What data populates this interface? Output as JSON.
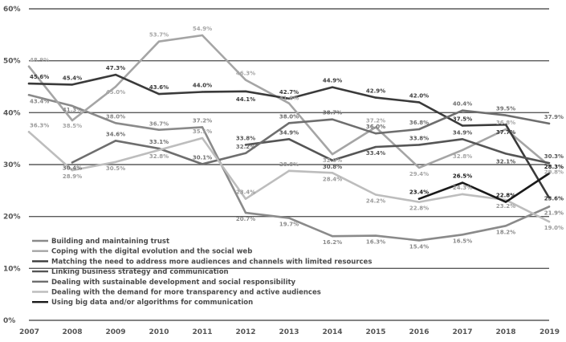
{
  "chart_data": {
    "type": "line",
    "categories": [
      "2007",
      "2008",
      "2009",
      "2010",
      "2011",
      "2012",
      "2013",
      "2014",
      "2015",
      "2016",
      "2017",
      "2018",
      "2019"
    ],
    "y_ticks": [
      "0%",
      "10%",
      "20%",
      "30%",
      "40%",
      "50%",
      "60%"
    ],
    "ylim": [
      0,
      60
    ],
    "grid": true,
    "legend_position": "bottom-left",
    "series": [
      {
        "name": "Building and maintaining trust",
        "color": "#8a8a8a",
        "values": [
          43.4,
          41.3,
          38.0,
          36.7,
          37.2,
          20.7,
          19.7,
          16.2,
          16.3,
          15.4,
          16.5,
          18.2,
          21.9
        ],
        "labels": [
          "43.4%",
          "41.3%",
          "38.0%",
          "36.7%",
          "37.2%",
          "20.7%",
          "19.7%",
          "16.2%",
          "16.3%",
          "15.4%",
          "16.5%",
          "18.2%",
          "21.9%"
        ]
      },
      {
        "name": "Coping with the digital evolution and the social web",
        "color": "#a5a5a5",
        "values": [
          48.9,
          38.5,
          45.0,
          53.7,
          54.9,
          46.3,
          41.8,
          32.0,
          37.2,
          29.4,
          32.8,
          36.8,
          29.8
        ],
        "labels": [
          "48.9%",
          "38.5%",
          "45.0%",
          "53.7%",
          "54.9%",
          "46.3%",
          "41.8%",
          "32.0%",
          "37.2%",
          "29.4%",
          "32.8%",
          "36.8%",
          "29.8%"
        ]
      },
      {
        "name": "Matching the need to address more audiences and channels with limited resources",
        "color": "#3a3a3a",
        "values": [
          45.6,
          45.4,
          47.3,
          43.6,
          44.0,
          44.1,
          42.7,
          44.9,
          42.9,
          42.0,
          37.5,
          37.7,
          23.6
        ],
        "labels": [
          "45.6%",
          "45.4%",
          "47.3%",
          "43.6%",
          "44.0%",
          "44.1%",
          "42.7%",
          "44.9%",
          "42.9%",
          "42.0%",
          "37.5%",
          "37.7%",
          "23.6%"
        ]
      },
      {
        "name": "Linking business strategy and communication",
        "color": "#555555",
        "values": [
          null,
          null,
          null,
          null,
          null,
          33.8,
          34.9,
          30.8,
          33.4,
          33.8,
          34.9,
          32.1,
          30.3
        ],
        "labels": [
          "",
          "",
          "",
          "",
          "",
          "33.8%",
          "34.9%",
          "30.8%",
          "33.4%",
          "33.8%",
          "34.9%",
          "32.1%",
          "30.3%"
        ]
      },
      {
        "name": "Dealing with sustainable development and social responsibility",
        "color": "#6e6e6e",
        "values": [
          null,
          30.4,
          34.6,
          33.1,
          30.1,
          32.2,
          38.0,
          38.7,
          36.0,
          36.8,
          40.4,
          39.5,
          37.9
        ],
        "labels": [
          "",
          "30.4%",
          "34.6%",
          "33.1%",
          "30.1%",
          "32.2%",
          "38.0%",
          "38.7%",
          "36.0%",
          "36.8%",
          "40.4%",
          "39.5%",
          "37.9%"
        ]
      },
      {
        "name": "Dealing with the demand for more transparency and active audiences",
        "color": "#bdbdbd",
        "values": [
          36.3,
          28.9,
          30.5,
          32.8,
          35.1,
          23.4,
          28.8,
          28.4,
          24.2,
          22.8,
          24.3,
          23.2,
          19.0
        ],
        "labels": [
          "36.3%",
          "28.9%",
          "30.5%",
          "32.8%",
          "35.1%",
          "23.4%",
          "28.8%",
          "28.4%",
          "24.2%",
          "22.8%",
          "24.3%",
          "23.2%",
          "19.0%"
        ]
      },
      {
        "name": "Using big data and/or algorithms for communication",
        "color": "#1a1a1a",
        "values": [
          null,
          null,
          null,
          null,
          null,
          null,
          null,
          null,
          null,
          23.4,
          26.5,
          22.8,
          28.3
        ],
        "labels": [
          "",
          "",
          "",
          "",
          "",
          "",
          "",
          "",
          "",
          "23.4%",
          "26.5%",
          "22.8%",
          "28.3%"
        ]
      }
    ]
  }
}
